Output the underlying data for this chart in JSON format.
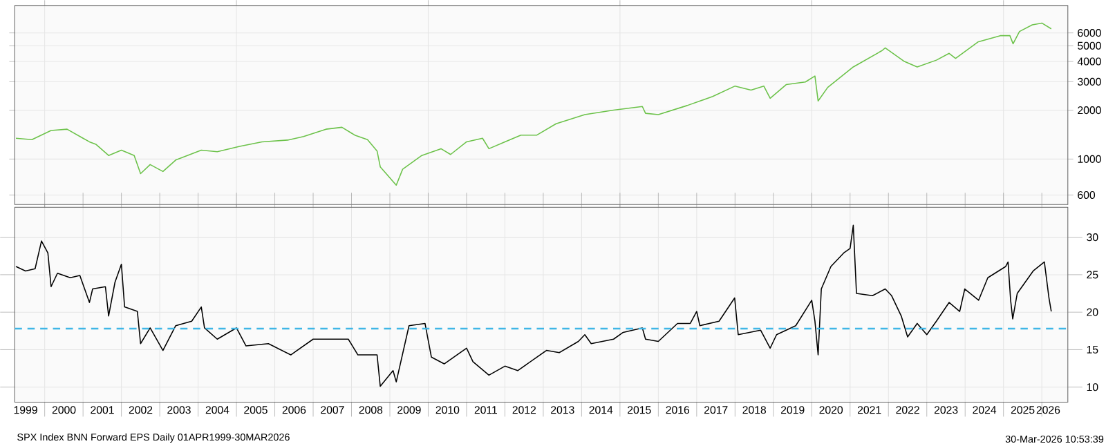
{
  "chart_data": [
    {
      "type": "line",
      "color": "#6cc24a",
      "log": "y",
      "grid": true,
      "tick_labels": "y",
      "xlim": [
        "1999-03-20",
        "2026-09-05"
      ],
      "ylim": [
        524,
        8840
      ],
      "yticks": [
        600,
        1000,
        2000,
        3000,
        4000,
        5000,
        6000
      ],
      "xticks": [
        {
          "value": "2000-01-01",
          "label": null
        },
        {
          "value": "2005-01-01",
          "label": null
        },
        {
          "value": "2010-01-01",
          "label": null
        },
        {
          "value": "2015-01-01",
          "label": null
        },
        {
          "value": "2020-01-01",
          "label": null
        },
        {
          "value": "2025-01-01",
          "label": null
        }
      ],
      "x": [
        "1999-04-01",
        "1999-09",
        "2000-03",
        "2000-08",
        "2001-01",
        "2001-03",
        "2001-05",
        "2001-09",
        "2002-01",
        "2002-05",
        "2002-07",
        "2002-10",
        "2003-02",
        "2003-06",
        "2004-02",
        "2004-07",
        "2005-02",
        "2005-09",
        "2006-05",
        "2006-10",
        "2007-05",
        "2007-10",
        "2008-02",
        "2008-06",
        "2008-09",
        "2008-10",
        "2009-03",
        "2009-05",
        "2009-11",
        "2010-05",
        "2010-08",
        "2011-01",
        "2011-06",
        "2011-08",
        "2012-01",
        "2012-06",
        "2012-11",
        "2013-05",
        "2014-02",
        "2014-11",
        "2015-08",
        "2015-09",
        "2016-01",
        "2016-10",
        "2017-06",
        "2018-01",
        "2018-06",
        "2018-10",
        "2018-12",
        "2019-05",
        "2019-11",
        "2020-02",
        "2020-03",
        "2020-06",
        "2021-02",
        "2021-11",
        "2021-12",
        "2022-06",
        "2022-10",
        "2023-04",
        "2023-08",
        "2023-10",
        "2024-05",
        "2024-12",
        "2025-03",
        "2025-04",
        "2025-06",
        "2025-10",
        "2026-01",
        "2026-03-30"
      ],
      "values": [
        1344,
        1318,
        1500,
        1528,
        1344,
        1277,
        1234,
        1052,
        1135,
        1052,
        813,
        924,
        838,
        986,
        1135,
        1109,
        1197,
        1277,
        1309,
        1377,
        1528,
        1570,
        1405,
        1318,
        1121,
        895,
        690,
        865,
        1052,
        1158,
        1067,
        1277,
        1344,
        1158,
        1277,
        1405,
        1405,
        1650,
        1879,
        2004,
        2110,
        1915,
        1879,
        2138,
        2431,
        2820,
        2662,
        2820,
        2370,
        2878,
        2988,
        3250,
        2280,
        2767,
        3700,
        4668,
        4850,
        3998,
        3700,
        4074,
        4488,
        4180,
        5274,
        5770,
        5770,
        5143,
        6120,
        6730,
        6900,
        6360
      ]
    },
    {
      "type": "line",
      "color": "#000000",
      "grid": true,
      "xlim": [
        "1999-03-20",
        "2026-09-05"
      ],
      "ylim": [
        8,
        34
      ],
      "yticks": [
        10,
        15,
        20,
        25,
        30
      ],
      "xticks": [
        {
          "value": "2000-01-01",
          "label": null
        },
        {
          "value": "2001-01-01",
          "label": null
        },
        {
          "value": "2002-01-01",
          "label": null
        },
        {
          "value": "2003-01-01",
          "label": null
        },
        {
          "value": "2004-01-01",
          "label": null
        },
        {
          "value": "2005-01-01",
          "label": null
        },
        {
          "value": "2006-01-01",
          "label": null
        },
        {
          "value": "2007-01-01",
          "label": null
        },
        {
          "value": "2008-01-01",
          "label": null
        },
        {
          "value": "2009-01-01",
          "label": null
        },
        {
          "value": "2010-01-01",
          "label": null
        },
        {
          "value": "2011-01-01",
          "label": null
        },
        {
          "value": "2012-01-01",
          "label": null
        },
        {
          "value": "2013-01-01",
          "label": null
        },
        {
          "value": "2014-01-01",
          "label": null
        },
        {
          "value": "2015-01-01",
          "label": null
        },
        {
          "value": "2016-01-01",
          "label": null
        },
        {
          "value": "2017-01-01",
          "label": null
        },
        {
          "value": "2018-01-01",
          "label": null
        },
        {
          "value": "2019-01-01",
          "label": null
        },
        {
          "value": "2020-01-01",
          "label": null
        },
        {
          "value": "2021-01-01",
          "label": null
        },
        {
          "value": "2022-01-01",
          "label": null
        },
        {
          "value": "2023-01-01",
          "label": null
        },
        {
          "value": "2024-01-01",
          "label": null
        },
        {
          "value": "2025-01-01",
          "label": null
        },
        {
          "value": "2026-01-01",
          "label": null
        },
        {
          "value": "1999-07-02",
          "label": "1999"
        },
        {
          "value": "2000-07-02",
          "label": "2000"
        },
        {
          "value": "2001-07-02",
          "label": "2001"
        },
        {
          "value": "2002-07-02",
          "label": "2002"
        },
        {
          "value": "2003-07-02",
          "label": "2003"
        },
        {
          "value": "2004-07-02",
          "label": "2004"
        },
        {
          "value": "2005-07-02",
          "label": "2005"
        },
        {
          "value": "2006-07-02",
          "label": "2006"
        },
        {
          "value": "2007-07-02",
          "label": "2007"
        },
        {
          "value": "2008-07-02",
          "label": "2008"
        },
        {
          "value": "2009-07-02",
          "label": "2009"
        },
        {
          "value": "2010-07-02",
          "label": "2010"
        },
        {
          "value": "2011-07-02",
          "label": "2011"
        },
        {
          "value": "2012-07-02",
          "label": "2012"
        },
        {
          "value": "2013-07-02",
          "label": "2013"
        },
        {
          "value": "2014-07-02",
          "label": "2014"
        },
        {
          "value": "2015-07-02",
          "label": "2015"
        },
        {
          "value": "2016-07-02",
          "label": "2016"
        },
        {
          "value": "2017-07-02",
          "label": "2017"
        },
        {
          "value": "2018-07-02",
          "label": "2018"
        },
        {
          "value": "2019-07-02",
          "label": "2019"
        },
        {
          "value": "2020-07-02",
          "label": "2020"
        },
        {
          "value": "2021-07-02",
          "label": "2021"
        },
        {
          "value": "2022-07-02",
          "label": "2022"
        },
        {
          "value": "2023-07-02",
          "label": "2023"
        },
        {
          "value": "2024-07-02",
          "label": "2024"
        },
        {
          "value": "2025-07-02",
          "label": "2025"
        },
        {
          "value": "2026-03-01",
          "label": "2026"
        }
      ],
      "ref_lines": [
        {
          "axis": "y",
          "value": 17.8,
          "color": "#3fb6e6",
          "line_style": "dashed"
        }
      ],
      "annotations": [
        "SPX Index BNN Forward EPS Daily 01APR1999-30MAR2026",
        "30-Mar-2026 10:53:39"
      ],
      "x": [
        "1999-04-01",
        "1999-07",
        "1999-10",
        "1999-12",
        "2000-02",
        "2000-03",
        "2000-05",
        "2000-09",
        "2000-12",
        "2001-03",
        "2001-04",
        "2001-08",
        "2001-09",
        "2001-11",
        "2002-01",
        "2002-02",
        "2002-06",
        "2002-07",
        "2002-10",
        "2003-02",
        "2003-06",
        "2003-11",
        "2004-02",
        "2004-03",
        "2004-07",
        "2005-01",
        "2005-04",
        "2005-11",
        "2006-06",
        "2007-01",
        "2007-07",
        "2007-12",
        "2008-03",
        "2008-09",
        "2008-10",
        "2009-02",
        "2009-03",
        "2009-07",
        "2009-12",
        "2010-02",
        "2010-06",
        "2011-01",
        "2011-03",
        "2011-08",
        "2012-01",
        "2012-05",
        "2013-02",
        "2013-06",
        "2013-12",
        "2014-02",
        "2014-04",
        "2014-11",
        "2015-02",
        "2015-08",
        "2015-09",
        "2016-01",
        "2016-07",
        "2016-11",
        "2017-01",
        "2017-02",
        "2017-08",
        "2017-12-28",
        "2018-02",
        "2018-09",
        "2018-12",
        "2019-02",
        "2019-08",
        "2020-01",
        "2020-02",
        "2020-03",
        "2020-04",
        "2020-07",
        "2020-11",
        "2021-01",
        "2021-02",
        "2021-03",
        "2021-08",
        "2021-12",
        "2022-02",
        "2022-05",
        "2022-07",
        "2022-10",
        "2023-01",
        "2023-04",
        "2023-08",
        "2023-11-10",
        "2023-12-28",
        "2024-05-08",
        "2024-08-04",
        "2025-01-22",
        "2025-02-14",
        "2025-03-08",
        "2025-03-28",
        "2025-05-10",
        "2025-10-10",
        "2026-01-25",
        "2026-03-08",
        "2026-03-30"
      ],
      "values": [
        26.1,
        25.5,
        25.8,
        29.5,
        27.9,
        23.4,
        25.2,
        24.6,
        24.9,
        21.3,
        23.1,
        23.4,
        19.5,
        24.0,
        26.4,
        20.7,
        20.1,
        15.8,
        17.9,
        14.9,
        18.2,
        18.8,
        20.7,
        17.9,
        16.4,
        17.9,
        15.5,
        15.8,
        14.3,
        16.4,
        16.4,
        16.4,
        14.3,
        14.3,
        10.1,
        12.2,
        10.7,
        18.2,
        18.5,
        14.0,
        13.1,
        15.2,
        13.4,
        11.6,
        12.8,
        12.2,
        14.9,
        14.6,
        16.1,
        17.0,
        15.8,
        16.4,
        17.3,
        17.9,
        16.4,
        16.1,
        18.5,
        18.5,
        20.1,
        18.2,
        18.8,
        21.9,
        17.0,
        17.6,
        15.2,
        17.0,
        18.2,
        21.6,
        18.8,
        14.3,
        23.1,
        26.1,
        27.9,
        28.5,
        31.6,
        22.5,
        22.2,
        23.1,
        22.2,
        19.5,
        16.7,
        18.5,
        17.0,
        18.8,
        21.3,
        20.1,
        23.1,
        21.6,
        24.6,
        26.1,
        26.7,
        21.6,
        19.1,
        22.5,
        25.5,
        26.7,
        21.9,
        20.1
      ]
    }
  ]
}
